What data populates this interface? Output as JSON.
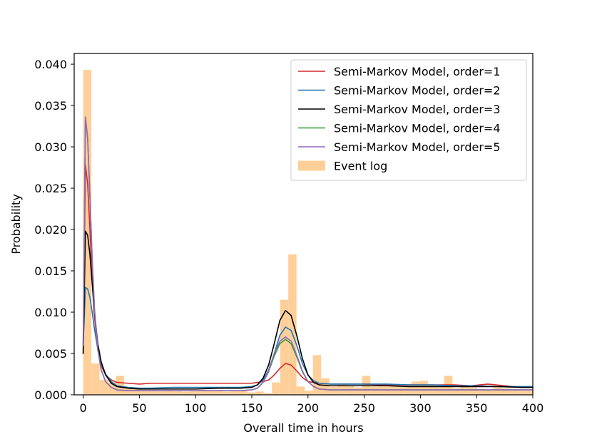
{
  "chart_data": {
    "type": "line",
    "title": "",
    "xlabel": "Overall time in hours",
    "ylabel": "Probability",
    "xlim": [
      -8,
      400
    ],
    "ylim": [
      0,
      0.0413
    ],
    "xticks": [
      0,
      50,
      100,
      150,
      200,
      250,
      300,
      350,
      400
    ],
    "xtick_labels": [
      "0",
      "50",
      "100",
      "150",
      "200",
      "250",
      "300",
      "350",
      "400"
    ],
    "yticks": [
      0,
      0.005,
      0.01,
      0.015,
      0.02,
      0.025,
      0.03,
      0.035,
      0.04
    ],
    "ytick_labels": [
      "0.000",
      "0.005",
      "0.010",
      "0.015",
      "0.020",
      "0.025",
      "0.030",
      "0.035",
      "0.040"
    ],
    "grid": false,
    "legend_position": "top-right",
    "histogram": {
      "name": "Event log",
      "color": "#ffcf99",
      "bin_width": 7.3,
      "bin_start": 0,
      "values": [
        0.0393,
        0.0038,
        0.0018,
        0.0015,
        0.0023,
        0.0008,
        0.0007,
        0.0006,
        0.0006,
        0.0005,
        0.0006,
        0.0005,
        0.0004,
        0.0005,
        0.0006,
        0.0005,
        0.0005,
        0.0004,
        0.0005,
        0.0006,
        0.0003,
        0.0004,
        0.0002,
        0.0015,
        0.0115,
        0.017,
        0.001,
        0.0005,
        0.0048,
        0.002,
        0.001,
        0.0013,
        0.0011,
        0.0009,
        0.0023,
        0.001,
        0.0012,
        0.001,
        0.0011,
        0.0013,
        0.0016,
        0.0017,
        0.0012,
        0.001,
        0.0023,
        0.0008,
        0.001,
        0.0009,
        0.0007,
        0.0006,
        0.0009,
        0.0008,
        0.0006,
        0.0005,
        0.0005
      ]
    },
    "series": [
      {
        "name": "Semi-Markov Model, order=1",
        "color": "#d62728",
        "x": [
          0,
          2,
          4,
          6,
          8,
          10,
          13,
          16,
          20,
          25,
          30,
          40,
          50,
          60,
          70,
          80,
          90,
          100,
          110,
          120,
          130,
          140,
          150,
          155,
          160,
          165,
          170,
          175,
          180,
          185,
          190,
          195,
          200,
          210,
          220,
          230,
          250,
          270,
          290,
          310,
          330,
          345,
          360,
          375,
          390,
          400
        ],
        "y": [
          0.005,
          0.0278,
          0.0255,
          0.02,
          0.014,
          0.0095,
          0.0055,
          0.0035,
          0.0024,
          0.0018,
          0.0015,
          0.0014,
          0.0013,
          0.0014,
          0.0014,
          0.0014,
          0.0014,
          0.0014,
          0.0014,
          0.0014,
          0.0014,
          0.0014,
          0.0014,
          0.0015,
          0.0016,
          0.0018,
          0.0024,
          0.0032,
          0.0038,
          0.0036,
          0.0029,
          0.0021,
          0.0016,
          0.0014,
          0.0013,
          0.0013,
          0.0013,
          0.0012,
          0.0012,
          0.0012,
          0.0012,
          0.0011,
          0.0013,
          0.0011,
          0.0009,
          0.0009
        ]
      },
      {
        "name": "Semi-Markov Model, order=2",
        "color": "#1f77b4",
        "x": [
          0,
          2,
          4,
          6,
          8,
          10,
          13,
          16,
          20,
          25,
          30,
          40,
          50,
          60,
          80,
          100,
          120,
          140,
          150,
          155,
          160,
          165,
          170,
          175,
          180,
          185,
          190,
          195,
          200,
          205,
          210,
          220,
          230,
          250,
          270,
          290,
          310,
          330,
          350,
          370,
          390,
          400
        ],
        "y": [
          0.006,
          0.013,
          0.0128,
          0.0118,
          0.01,
          0.008,
          0.0055,
          0.0038,
          0.0025,
          0.0016,
          0.0011,
          0.0009,
          0.0008,
          0.0008,
          0.0009,
          0.0009,
          0.0009,
          0.0009,
          0.001,
          0.0012,
          0.0018,
          0.003,
          0.005,
          0.0072,
          0.0082,
          0.0078,
          0.006,
          0.0038,
          0.0024,
          0.0017,
          0.0014,
          0.0013,
          0.0013,
          0.0013,
          0.0013,
          0.0012,
          0.0012,
          0.0011,
          0.0011,
          0.001,
          0.001,
          0.001
        ]
      },
      {
        "name": "Semi-Markov Model, order=3",
        "color": "#000000",
        "x": [
          0,
          2,
          4,
          6,
          8,
          10,
          13,
          16,
          20,
          25,
          30,
          40,
          50,
          60,
          80,
          100,
          120,
          140,
          150,
          155,
          160,
          165,
          170,
          175,
          180,
          185,
          190,
          195,
          200,
          205,
          210,
          220,
          230,
          250,
          270,
          290,
          310,
          330,
          350,
          370,
          390,
          400
        ],
        "y": [
          0.005,
          0.0198,
          0.0193,
          0.017,
          0.0135,
          0.01,
          0.0062,
          0.004,
          0.0024,
          0.0014,
          0.001,
          0.0008,
          0.0007,
          0.0007,
          0.0007,
          0.0007,
          0.0008,
          0.0008,
          0.0009,
          0.0012,
          0.002,
          0.0036,
          0.0062,
          0.009,
          0.0102,
          0.0096,
          0.0072,
          0.0044,
          0.0024,
          0.0015,
          0.0012,
          0.0011,
          0.0011,
          0.0011,
          0.0011,
          0.001,
          0.001,
          0.001,
          0.001,
          0.001,
          0.0009,
          0.0009
        ]
      },
      {
        "name": "Semi-Markov Model, order=4",
        "color": "#2ca02c",
        "x": [
          0,
          2,
          4,
          6,
          8,
          10,
          13,
          16,
          20,
          25,
          30,
          40,
          50,
          60,
          80,
          100,
          120,
          140,
          150,
          155,
          160,
          165,
          170,
          175,
          180,
          185,
          190,
          195,
          200,
          205,
          210,
          220,
          230,
          250,
          270,
          290,
          310,
          330,
          350,
          370,
          390,
          400
        ],
        "y": [
          0.006,
          0.0336,
          0.031,
          0.024,
          0.0165,
          0.0105,
          0.0055,
          0.003,
          0.0016,
          0.0009,
          0.0006,
          0.0005,
          0.0005,
          0.0005,
          0.0005,
          0.0005,
          0.0005,
          0.0005,
          0.0006,
          0.0008,
          0.0015,
          0.0028,
          0.0047,
          0.0062,
          0.0067,
          0.0062,
          0.0046,
          0.0028,
          0.0016,
          0.001,
          0.0007,
          0.0006,
          0.0006,
          0.0006,
          0.0006,
          0.0006,
          0.0006,
          0.0006,
          0.0006,
          0.0006,
          0.0006,
          0.0006
        ]
      },
      {
        "name": "Semi-Markov Model, order=5",
        "color": "#9467bd",
        "x": [
          0,
          2,
          4,
          6,
          8,
          10,
          13,
          16,
          20,
          25,
          30,
          40,
          50,
          60,
          80,
          100,
          120,
          140,
          150,
          155,
          160,
          165,
          170,
          175,
          180,
          185,
          190,
          195,
          200,
          205,
          210,
          220,
          230,
          250,
          270,
          290,
          310,
          330,
          350,
          370,
          390,
          400
        ],
        "y": [
          0.006,
          0.0336,
          0.031,
          0.024,
          0.0165,
          0.0105,
          0.0055,
          0.003,
          0.0016,
          0.0009,
          0.0006,
          0.0005,
          0.0005,
          0.0005,
          0.0005,
          0.0005,
          0.0005,
          0.0005,
          0.0006,
          0.0008,
          0.0015,
          0.0029,
          0.005,
          0.0065,
          0.007,
          0.0065,
          0.0048,
          0.0029,
          0.0016,
          0.001,
          0.0007,
          0.0006,
          0.0006,
          0.0006,
          0.0006,
          0.0006,
          0.0006,
          0.0006,
          0.0006,
          0.0006,
          0.0006,
          0.0006
        ]
      }
    ]
  }
}
